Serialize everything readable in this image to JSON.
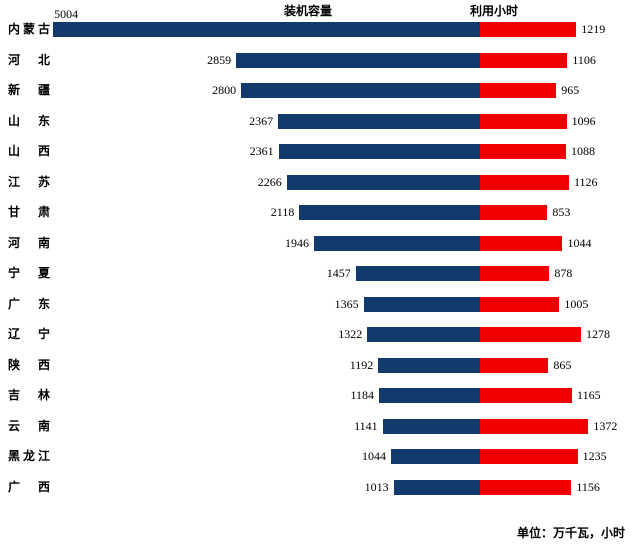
{
  "chart_data": {
    "type": "bar",
    "variant": "tornado-diverging",
    "title": "",
    "categories": [
      "内蒙古",
      "河北",
      "新疆",
      "山东",
      "山西",
      "江苏",
      "甘肃",
      "河南",
      "宁夏",
      "广东",
      "辽宁",
      "陕西",
      "吉林",
      "云南",
      "黑龙江",
      "广西"
    ],
    "series": [
      {
        "name": "装机容量",
        "direction": "left",
        "color": "#123A6D",
        "values": [
          5004,
          2859,
          2800,
          2367,
          2361,
          2266,
          2118,
          1946,
          1457,
          1365,
          1322,
          1192,
          1184,
          1141,
          1044,
          1013
        ]
      },
      {
        "name": "利用小时",
        "direction": "right",
        "color": "#F00000",
        "values": [
          1219,
          1106,
          965,
          1096,
          1088,
          1126,
          853,
          1044,
          878,
          1005,
          1278,
          865,
          1165,
          1372,
          1235,
          1156
        ]
      }
    ],
    "unit_note": "单位：万千瓦，小时",
    "value_labels": "outer-ends",
    "legend_position": "top",
    "grid": false,
    "background": "#FFFFFF",
    "text_color": "#000000"
  }
}
